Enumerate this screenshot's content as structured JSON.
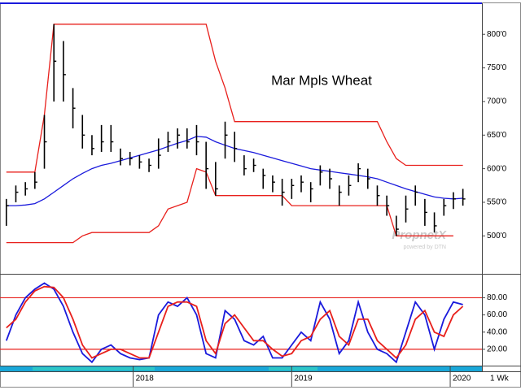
{
  "chart_data": [
    {
      "type": "ohlc",
      "annotation": "Mar Mpls Wheat",
      "watermark": "PropnetX",
      "watermark_sub": "powered by DTN",
      "x": [
        2017.2,
        2017.26,
        2017.32,
        2017.38,
        2017.44,
        2017.5,
        2017.56,
        2017.62,
        2017.68,
        2017.74,
        2017.8,
        2017.86,
        2017.92,
        2017.98,
        2018.04,
        2018.1,
        2018.16,
        2018.22,
        2018.28,
        2018.34,
        2018.4,
        2018.46,
        2018.52,
        2018.58,
        2018.64,
        2018.7,
        2018.76,
        2018.82,
        2018.88,
        2018.94,
        2019.0,
        2019.06,
        2019.12,
        2019.18,
        2019.24,
        2019.3,
        2019.36,
        2019.42,
        2019.48,
        2019.54,
        2019.6,
        2019.66,
        2019.72,
        2019.78,
        2019.84,
        2019.9,
        2019.96,
        2020.02,
        2020.08
      ],
      "xlim": [
        2017.16,
        2020.2
      ],
      "ylim": [
        446,
        845
      ],
      "yticks": [
        {
          "value": 500,
          "label": "500'0"
        },
        {
          "value": 550,
          "label": "550'0"
        },
        {
          "value": 600,
          "label": "600'0"
        },
        {
          "value": 650,
          "label": "650'0"
        },
        {
          "value": 700,
          "label": "700'0"
        },
        {
          "value": 750,
          "label": "750'0"
        },
        {
          "value": 800,
          "label": "800'0"
        }
      ],
      "bars": {
        "color": "#000000",
        "high": [
          555,
          575,
          580,
          595,
          680,
          815,
          790,
          720,
          680,
          650,
          665,
          665,
          630,
          625,
          620,
          615,
          645,
          655,
          660,
          660,
          665,
          640,
          610,
          670,
          655,
          620,
          615,
          600,
          590,
          585,
          585,
          590,
          580,
          605,
          600,
          575,
          590,
          608,
          600,
          575,
          560,
          530,
          560,
          575,
          555,
          535,
          555,
          565,
          570
        ],
        "low": [
          515,
          550,
          560,
          570,
          600,
          700,
          700,
          660,
          630,
          620,
          625,
          625,
          605,
          605,
          600,
          595,
          600,
          625,
          630,
          630,
          620,
          570,
          560,
          615,
          610,
          590,
          595,
          570,
          565,
          545,
          555,
          565,
          550,
          575,
          570,
          545,
          560,
          580,
          570,
          545,
          530,
          500,
          520,
          545,
          515,
          505,
          530,
          540,
          545
        ],
        "close": [
          545,
          565,
          570,
          580,
          640,
          760,
          740,
          690,
          650,
          630,
          640,
          640,
          615,
          615,
          610,
          605,
          620,
          640,
          650,
          640,
          640,
          600,
          570,
          650,
          630,
          600,
          605,
          590,
          580,
          565,
          575,
          580,
          570,
          595,
          585,
          565,
          575,
          600,
          585,
          560,
          545,
          510,
          540,
          565,
          535,
          515,
          545,
          555,
          555
        ]
      },
      "lines": [
        {
          "color": "#1a1adc",
          "values": [
            545,
            545,
            546,
            548,
            555,
            565,
            575,
            585,
            593,
            600,
            605,
            608,
            612,
            616,
            620,
            624,
            628,
            633,
            638,
            642,
            648,
            647,
            640,
            635,
            630,
            627,
            624,
            620,
            616,
            612,
            608,
            604,
            600,
            598,
            596,
            594,
            592,
            590,
            588,
            585,
            580,
            575,
            570,
            566,
            562,
            558,
            556,
            555,
            556
          ]
        },
        {
          "color": "#e8201c",
          "values": [
            595,
            595,
            595,
            595,
            680,
            815,
            815,
            815,
            815,
            815,
            815,
            815,
            815,
            815,
            815,
            815,
            815,
            815,
            815,
            815,
            815,
            815,
            760,
            720,
            670,
            670,
            670,
            670,
            670,
            670,
            670,
            670,
            670,
            670,
            670,
            670,
            670,
            670,
            670,
            670,
            640,
            615,
            605,
            605,
            605,
            605,
            605,
            605,
            605
          ]
        },
        {
          "color": "#e8201c",
          "values": [
            490,
            490,
            490,
            490,
            490,
            490,
            490,
            490,
            500,
            505,
            505,
            505,
            505,
            505,
            505,
            505,
            515,
            540,
            545,
            550,
            600,
            595,
            560,
            560,
            560,
            560,
            560,
            560,
            560,
            560,
            545,
            545,
            545,
            545,
            545,
            545,
            545,
            545,
            545,
            545,
            545,
            500,
            500,
            500,
            500,
            500,
            500,
            500,
            null
          ]
        }
      ]
    },
    {
      "type": "line",
      "period": "1 Wk",
      "x": [
        2017.2,
        2017.26,
        2017.32,
        2017.38,
        2017.44,
        2017.5,
        2017.56,
        2017.62,
        2017.68,
        2017.74,
        2017.8,
        2017.86,
        2017.92,
        2017.98,
        2018.04,
        2018.1,
        2018.16,
        2018.22,
        2018.28,
        2018.34,
        2018.4,
        2018.46,
        2018.52,
        2018.58,
        2018.64,
        2018.7,
        2018.76,
        2018.82,
        2018.88,
        2018.94,
        2019.0,
        2019.06,
        2019.12,
        2019.18,
        2019.24,
        2019.3,
        2019.36,
        2019.42,
        2019.48,
        2019.54,
        2019.6,
        2019.66,
        2019.72,
        2019.78,
        2019.84,
        2019.9,
        2019.96,
        2020.02,
        2020.08
      ],
      "xlim": [
        2017.16,
        2020.2
      ],
      "xticks": [
        2018,
        2019,
        2020
      ],
      "ylim": [
        1,
        105
      ],
      "yticks": [
        {
          "value": 20,
          "label": "20.00"
        },
        {
          "value": 40,
          "label": "40.00"
        },
        {
          "value": 60,
          "label": "60.00"
        },
        {
          "value": 80,
          "label": "80.00"
        }
      ],
      "reference_lines": [
        80,
        20
      ],
      "reference_color": "#e8201c",
      "series": [
        {
          "color": "#1a1adc",
          "values": [
            30,
            60,
            80,
            90,
            97,
            90,
            70,
            40,
            15,
            5,
            20,
            25,
            15,
            10,
            8,
            10,
            60,
            75,
            70,
            80,
            60,
            15,
            10,
            65,
            55,
            30,
            25,
            35,
            10,
            10,
            25,
            40,
            30,
            75,
            55,
            15,
            30,
            75,
            40,
            20,
            15,
            5,
            40,
            75,
            60,
            20,
            55,
            75,
            72
          ]
        },
        {
          "color": "#e8201c",
          "values": [
            45,
            55,
            75,
            88,
            93,
            92,
            80,
            55,
            25,
            10,
            15,
            20,
            20,
            15,
            10,
            10,
            40,
            70,
            75,
            75,
            70,
            30,
            15,
            50,
            60,
            45,
            30,
            30,
            20,
            12,
            15,
            30,
            35,
            55,
            65,
            35,
            25,
            55,
            55,
            30,
            20,
            10,
            25,
            55,
            65,
            40,
            35,
            60,
            70
          ]
        }
      ]
    }
  ]
}
